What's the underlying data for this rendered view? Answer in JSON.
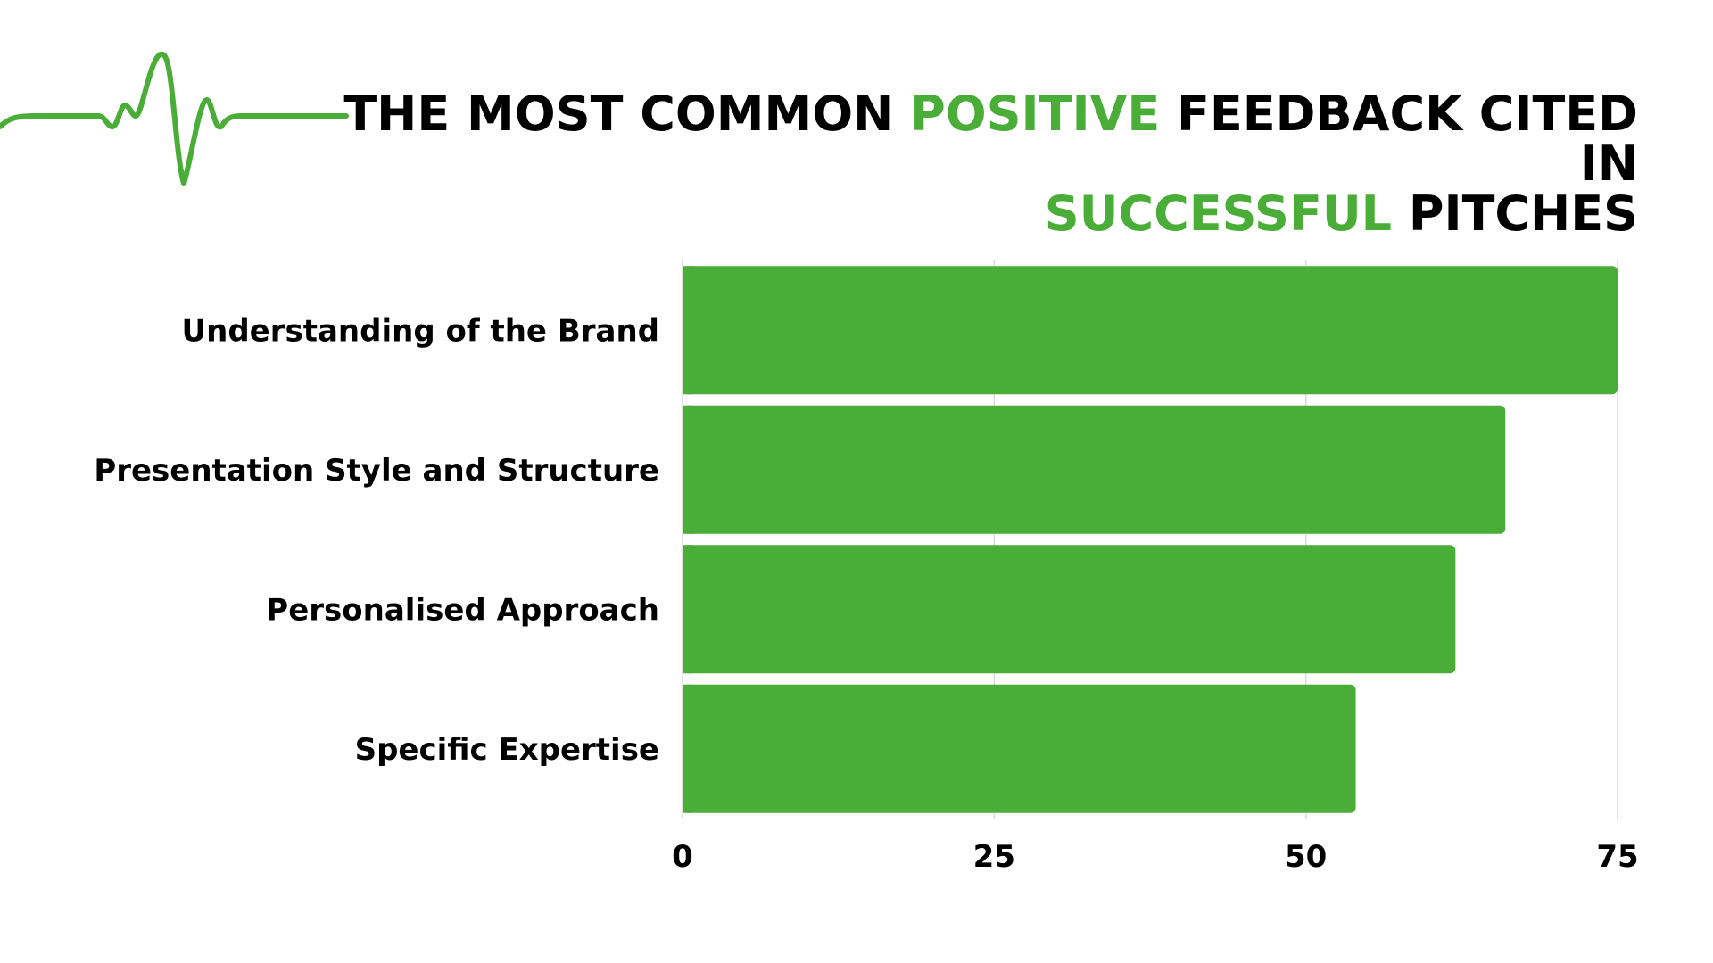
{
  "title": {
    "line1_part1": "THE MOST COMMON ",
    "line1_accent": "POSITIVE",
    "line1_part2": " FEEDBACK CITED IN",
    "line2_accent": "SUCCESSFUL",
    "line2_part2": " PITCHES"
  },
  "icon": "heartbeat-line-icon",
  "colors": {
    "accent": "#4aad37",
    "bar": "#4aad37",
    "grid": "#d9d9d9",
    "text": "#000000"
  },
  "chart_data": {
    "type": "bar",
    "orientation": "horizontal",
    "categories": [
      "Understanding of the Brand",
      "Presentation Style and Structure",
      "Personalised Approach",
      "Specific Expertise"
    ],
    "values": [
      75,
      66,
      62,
      54
    ],
    "xlim": [
      0,
      75
    ],
    "xticks": [
      "0",
      "25",
      "50",
      "75"
    ],
    "grid": true,
    "legend": false
  }
}
